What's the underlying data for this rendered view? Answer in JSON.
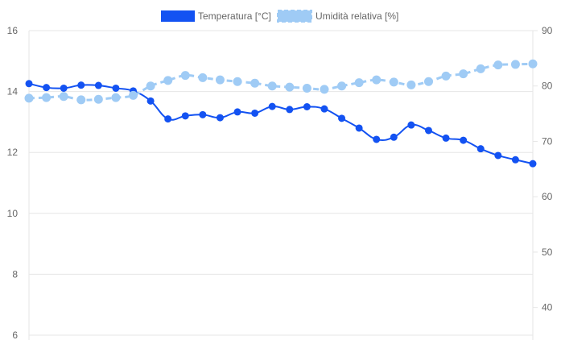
{
  "chart_data": {
    "type": "line",
    "title": "",
    "xlabel": "",
    "ylabel": "",
    "y2label": "",
    "legend_position": "top-center",
    "grid": true,
    "ylim": [
      6,
      16
    ],
    "y2lim": [
      35,
      90
    ],
    "yticks": [
      "6",
      "8",
      "10",
      "12",
      "14",
      "16"
    ],
    "y2ticks": [
      "40",
      "50",
      "60",
      "70",
      "80",
      "90"
    ],
    "x": [
      1,
      2,
      3,
      4,
      5,
      6,
      7,
      8,
      9,
      10,
      11,
      12,
      13,
      14,
      15,
      16,
      17,
      18,
      19,
      20,
      21,
      22,
      23,
      24,
      25,
      26,
      27,
      28,
      29,
      30
    ],
    "series": [
      {
        "name": "Temperatura [°C]",
        "axis": "left",
        "color": "#1352f2",
        "style": "solid",
        "values": [
          14.26,
          14.13,
          14.11,
          14.21,
          14.2,
          14.11,
          14.02,
          13.69,
          13.1,
          13.2,
          13.24,
          13.14,
          13.33,
          13.29,
          13.51,
          13.41,
          13.5,
          13.43,
          13.12,
          12.8,
          12.43,
          12.5,
          12.9,
          12.72,
          12.47,
          12.4,
          12.12,
          11.9,
          11.76,
          11.63
        ]
      },
      {
        "name": "Umidità relativa [%]",
        "axis": "right",
        "color": "#9fcbf5",
        "style": "dashed",
        "values": [
          77.8,
          77.9,
          78.1,
          77.5,
          77.6,
          77.9,
          78.3,
          80.0,
          81.0,
          81.9,
          81.5,
          81.1,
          80.8,
          80.5,
          80.0,
          79.8,
          79.6,
          79.4,
          80.0,
          80.6,
          81.1,
          80.7,
          80.2,
          80.8,
          81.8,
          82.2,
          83.1,
          83.8,
          83.9,
          84.0
        ]
      }
    ]
  }
}
